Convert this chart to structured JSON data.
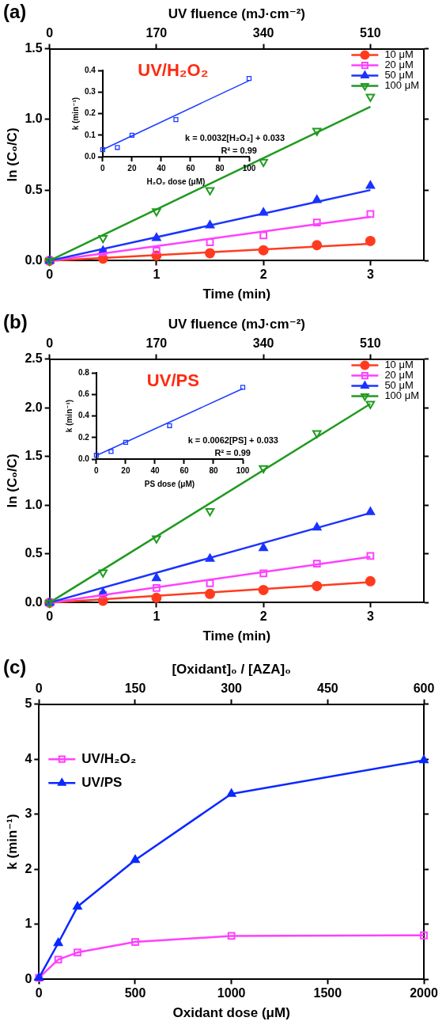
{
  "chart_data": [
    {
      "type": "scatter",
      "title": "(a)",
      "xlabel": "Time (min)",
      "ylabel": "ln (C₀/C)",
      "x2label": "UV fluence (mJ·cm⁻²)",
      "xlim": [
        0,
        3.5
      ],
      "xticks": [
        0,
        1,
        2,
        3
      ],
      "x2lim": [
        0,
        595
      ],
      "x2ticks": [
        0,
        170,
        340,
        510
      ],
      "ylim": [
        0,
        1.5
      ],
      "yticks": [
        {
          "value": 0,
          "label": "0.0"
        },
        {
          "value": 0.5,
          "label": "0.5"
        },
        {
          "value": 1,
          "label": "1.0"
        },
        {
          "value": 1.5,
          "label": "1.5"
        }
      ],
      "legend": "top right",
      "annotations": [
        "UV/H₂O₂"
      ],
      "x": [
        0,
        0.5,
        1,
        1.5,
        2,
        2.5,
        3
      ],
      "series": [
        {
          "name": "10 μM",
          "color": "#ff3b1f",
          "marker": "circle",
          "values": [
            0,
            0.015,
            0.036,
            0.053,
            0.074,
            0.11,
            0.14
          ]
        },
        {
          "name": "20 μM",
          "color": "#ff40ff",
          "marker": "square",
          "values": [
            0,
            0.06,
            0.07,
            0.13,
            0.18,
            0.27,
            0.33
          ]
        },
        {
          "name": "50 μM",
          "color": "#1a33ff",
          "marker": "triangle",
          "values": [
            0,
            0.07,
            0.16,
            0.25,
            0.34,
            0.43,
            0.53
          ]
        },
        {
          "name": "100 μM",
          "color": "#1f9a1f",
          "marker": "triangle-down",
          "values": [
            0,
            0.16,
            0.35,
            0.5,
            0.7,
            0.92,
            1.16
          ]
        },
        {
          "type": "line",
          "color": "#ff3b1f",
          "marker": "none",
          "x": [
            0,
            3
          ],
          "values": [
            0,
            0.12
          ]
        },
        {
          "type": "line",
          "color": "#ff40ff",
          "marker": "none",
          "x": [
            0,
            3
          ],
          "values": [
            0,
            0.31
          ]
        },
        {
          "type": "line",
          "color": "#1a33ff",
          "marker": "none",
          "x": [
            0,
            3
          ],
          "values": [
            0,
            0.5
          ]
        },
        {
          "type": "line",
          "color": "#1f9a1f",
          "marker": "none",
          "x": [
            0,
            3
          ],
          "values": [
            0,
            1.09
          ]
        }
      ]
    },
    {
      "type": "scatter",
      "xlabel": "H₂O₂ dose (μM)",
      "ylabel": "k (min⁻¹)",
      "xlim": [
        0,
        100
      ],
      "xticks": [
        0,
        20,
        40,
        60,
        80,
        100
      ],
      "ylim": [
        0,
        0.4
      ],
      "yticks": [
        {
          "value": 0,
          "label": "0.0"
        },
        {
          "value": 0.1,
          "label": "0.1"
        },
        {
          "value": 0.2,
          "label": "0.2"
        },
        {
          "value": 0.3,
          "label": "0.3"
        },
        {
          "value": 0.4,
          "label": "0.4"
        }
      ],
      "annotations": [
        "k = 0.0032[H₂O₂] + 0.033",
        "R² = 0.99"
      ],
      "series": [
        {
          "color": "#1a3cff",
          "marker": "square",
          "x": [
            0,
            10,
            20,
            50,
            100
          ],
          "values": [
            0.033,
            0.043,
            0.1,
            0.172,
            0.363
          ]
        },
        {
          "type": "line",
          "color": "#1a3cff",
          "marker": "none",
          "x": [
            0,
            100
          ],
          "values": [
            0.033,
            0.353
          ]
        }
      ]
    },
    {
      "type": "scatter",
      "title": "(b)",
      "xlabel": "Time (min)",
      "ylabel": "ln (C₀/C)",
      "x2label": "UV fluence (mJ·cm⁻²)",
      "xlim": [
        0,
        3.5
      ],
      "xticks": [
        0,
        1,
        2,
        3
      ],
      "x2lim": [
        0,
        595
      ],
      "x2ticks": [
        0,
        170,
        340,
        510
      ],
      "ylim": [
        0,
        2.5
      ],
      "yticks": [
        {
          "value": 0,
          "label": "0.0"
        },
        {
          "value": 0.5,
          "label": "0.5"
        },
        {
          "value": 1,
          "label": "1.0"
        },
        {
          "value": 1.5,
          "label": "1.5"
        },
        {
          "value": 2,
          "label": "2.0"
        },
        {
          "value": 2.5,
          "label": "2.5"
        }
      ],
      "legend": "top right",
      "annotations": [
        "UV/PS"
      ],
      "x": [
        0,
        0.5,
        1,
        1.5,
        2,
        2.5,
        3
      ],
      "series": [
        {
          "name": "10 μM",
          "color": "#ff3b1f",
          "marker": "circle",
          "values": [
            0,
            0.02,
            0.05,
            0.09,
            0.13,
            0.17,
            0.22
          ]
        },
        {
          "name": "20 μM",
          "color": "#ff40ff",
          "marker": "square",
          "values": [
            0,
            0.08,
            0.15,
            0.2,
            0.3,
            0.4,
            0.48
          ]
        },
        {
          "name": "50 μM",
          "color": "#1a33ff",
          "marker": "triangle",
          "values": [
            0,
            0.1,
            0.25,
            0.45,
            0.56,
            0.77,
            0.93
          ]
        },
        {
          "name": "100 μM",
          "color": "#1f9a1f",
          "marker": "triangle-down",
          "values": [
            0,
            0.31,
            0.66,
            0.94,
            1.38,
            1.74,
            2.04
          ]
        },
        {
          "type": "line",
          "color": "#ff3b1f",
          "marker": "none",
          "x": [
            0,
            3
          ],
          "values": [
            0,
            0.21
          ]
        },
        {
          "type": "line",
          "color": "#ff40ff",
          "marker": "none",
          "x": [
            0,
            3
          ],
          "values": [
            0,
            0.47
          ]
        },
        {
          "type": "line",
          "color": "#1a33ff",
          "marker": "none",
          "x": [
            0,
            3
          ],
          "values": [
            0,
            0.92
          ]
        },
        {
          "type": "line",
          "color": "#1f9a1f",
          "marker": "none",
          "x": [
            0,
            3
          ],
          "values": [
            0,
            2.04
          ]
        }
      ]
    },
    {
      "type": "scatter",
      "xlabel": "PS dose (μM)",
      "ylabel": "k (min⁻¹)",
      "xlim": [
        0,
        100
      ],
      "xticks": [
        0,
        20,
        40,
        60,
        80,
        100
      ],
      "ylim": [
        0,
        0.8
      ],
      "yticks": [
        {
          "value": 0,
          "label": "0.0"
        },
        {
          "value": 0.2,
          "label": "0.2"
        },
        {
          "value": 0.4,
          "label": "0.4"
        },
        {
          "value": 0.6,
          "label": "0.6"
        },
        {
          "value": 0.8,
          "label": "0.8"
        }
      ],
      "annotations": [
        "k = 0.0062[PS] + 0.033",
        "R² = 0.99"
      ],
      "series": [
        {
          "color": "#1a3cff",
          "marker": "square",
          "x": [
            0,
            10,
            20,
            50,
            100
          ],
          "values": [
            0.035,
            0.07,
            0.155,
            0.31,
            0.665
          ]
        },
        {
          "type": "line",
          "color": "#1a3cff",
          "marker": "none",
          "x": [
            0,
            100
          ],
          "values": [
            0.033,
            0.653
          ]
        }
      ]
    },
    {
      "type": "line",
      "title": "(c)",
      "xlabel": "Oxidant dose (μM)",
      "ylabel": "k (min⁻¹)",
      "x2label": "[Oxidant]₀ / [AZA]₀",
      "xlim": [
        0,
        2000
      ],
      "xticks": [
        0,
        500,
        1000,
        1500,
        2000
      ],
      "x2lim": [
        0,
        600
      ],
      "x2ticks": [
        0,
        150,
        300,
        450,
        600
      ],
      "ylim": [
        0,
        5
      ],
      "yticks": [
        0,
        1,
        2,
        3,
        4,
        5
      ],
      "legend": "left",
      "x": [
        0,
        100,
        200,
        500,
        1000,
        2000
      ],
      "series": [
        {
          "name": "UV/H₂O₂",
          "color": "#ff40ff",
          "marker": "square",
          "values": [
            0.03,
            0.36,
            0.49,
            0.68,
            0.79,
            0.8
          ]
        },
        {
          "name": "UV/PS",
          "color": "#0a28ff",
          "marker": "triangle",
          "values": [
            0.03,
            0.66,
            1.32,
            2.17,
            3.37,
            3.98
          ]
        }
      ]
    }
  ]
}
